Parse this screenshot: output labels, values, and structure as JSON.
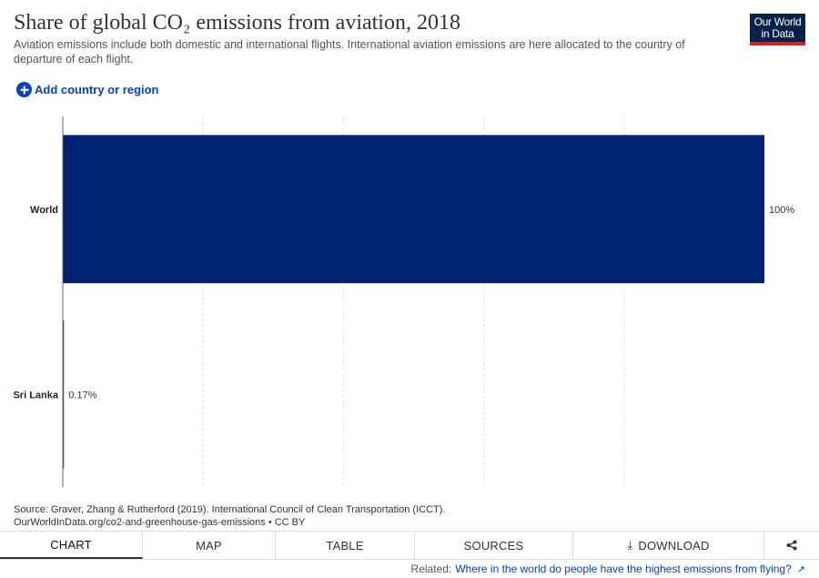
{
  "header": {
    "title": "Share of global CO₂ emissions from aviation, 2018",
    "subtitle": "Aviation emissions include both domestic and international flights. International aviation emissions are here allocated to the country of departure of each flight."
  },
  "logo": {
    "line1": "Our World",
    "line2": "in Data"
  },
  "controls": {
    "add_country_label": "Add country or region"
  },
  "chart_data": {
    "type": "bar",
    "orientation": "horizontal",
    "categories": [
      "World",
      "Sri Lanka"
    ],
    "values": [
      100,
      0.17
    ],
    "value_labels": [
      "100%",
      "0.17%"
    ],
    "unit": "%",
    "xlim": [
      0,
      100
    ],
    "grid": true,
    "bar_colors": [
      "#002270",
      "#3c4f8f"
    ]
  },
  "source": {
    "line1": "Source: Graver, Zhang & Rutherford (2019). International Council of Clean Transportation (ICCT).",
    "line2": "OurWorldInData.org/co2-and-greenhouse-gas-emissions • CC BY"
  },
  "tabs": [
    {
      "label": "CHART",
      "active": true
    },
    {
      "label": "MAP",
      "active": false
    },
    {
      "label": "TABLE",
      "active": false
    },
    {
      "label": "SOURCES",
      "active": false
    },
    {
      "label": "DOWNLOAD",
      "active": false
    }
  ],
  "related": {
    "prefix": "Related:",
    "link": "Where in the world do people have the highest emissions from flying?"
  }
}
